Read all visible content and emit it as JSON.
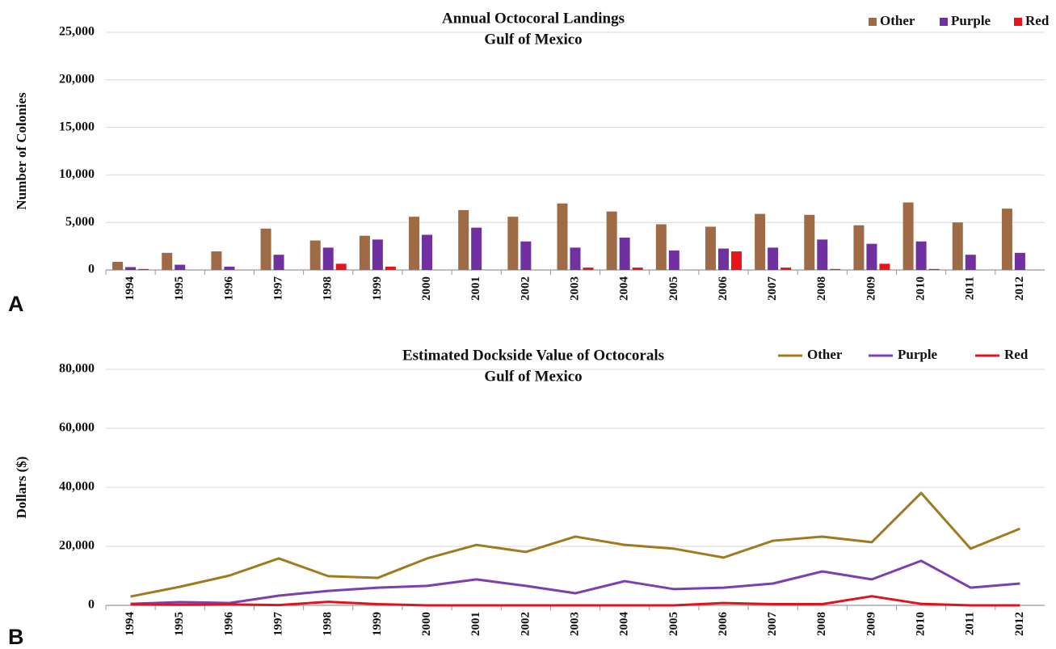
{
  "chart_data": [
    {
      "type": "bar",
      "panel_label": "A",
      "title": "Annual Octocoral Landings",
      "subtitle": "Gulf of Mexico",
      "y_label": "Number of Colonies",
      "categories": [
        "1994",
        "1995",
        "1996",
        "1997",
        "1998",
        "1999",
        "2000",
        "2001",
        "2002",
        "2003",
        "2004",
        "2005",
        "2006",
        "2007",
        "2008",
        "2009",
        "2010",
        "2011",
        "2012"
      ],
      "series": [
        {
          "name": "Other",
          "color": "#9e6b46",
          "values": [
            850,
            1800,
            1950,
            4350,
            3100,
            3600,
            5600,
            6300,
            5600,
            7000,
            6150,
            4800,
            4550,
            5900,
            5800,
            4700,
            7100,
            5000,
            6450
          ]
        },
        {
          "name": "Purple",
          "color": "#7030a0",
          "values": [
            300,
            550,
            350,
            1600,
            2350,
            3200,
            3700,
            4450,
            3000,
            2350,
            3400,
            2050,
            2250,
            2350,
            3200,
            2750,
            3000,
            1600,
            1800
          ]
        },
        {
          "name": "Red",
          "color": "#e8141c",
          "values": [
            100,
            0,
            0,
            0,
            650,
            350,
            0,
            0,
            0,
            250,
            250,
            0,
            1950,
            250,
            100,
            650,
            100,
            0,
            0
          ]
        }
      ],
      "ylim": [
        0,
        25000
      ],
      "yticks": [
        0,
        {
          "value": 5000,
          "label": "5,000"
        },
        {
          "value": 10000,
          "label": "10,000"
        },
        {
          "value": 15000,
          "label": "15,000"
        },
        {
          "value": 20000,
          "label": "20,000"
        },
        {
          "value": 25000,
          "label": "25,000"
        }
      ],
      "grid": true,
      "legend": "top-right"
    },
    {
      "type": "line",
      "panel_label": "B",
      "title": "Estimated Dockside Value of Octocorals",
      "subtitle": "Gulf of Mexico",
      "y_label": "Dollars ($)",
      "categories": [
        "1994",
        "1995",
        "1996",
        "1997",
        "1998",
        "1999",
        "2000",
        "2001",
        "2002",
        "2003",
        "2004",
        "2005",
        "2006",
        "2007",
        "2008",
        "2009",
        "2010",
        "2011",
        "2012"
      ],
      "series": [
        {
          "name": "Other",
          "color": "#a07a1e",
          "values": [
            3000,
            6300,
            10100,
            15900,
            9900,
            9300,
            15900,
            20500,
            18100,
            23300,
            20500,
            19200,
            16200,
            21900,
            23300,
            21400,
            38100,
            19200,
            26000
          ]
        },
        {
          "name": "Purple",
          "color": "#7b3fb0",
          "values": [
            500,
            1100,
            800,
            3300,
            4900,
            6000,
            6600,
            8800,
            6600,
            4100,
            8200,
            5500,
            6000,
            7400,
            11500,
            8800,
            15100,
            6000,
            7400
          ]
        },
        {
          "name": "Red",
          "color": "#e0141c",
          "values": [
            300,
            200,
            300,
            100,
            1200,
            400,
            0,
            0,
            0,
            0,
            0,
            0,
            800,
            400,
            400,
            3100,
            500,
            0,
            0
          ]
        }
      ],
      "ylim": [
        0,
        80000
      ],
      "yticks": [
        0,
        {
          "value": 20000,
          "label": "20,000"
        },
        {
          "value": 40000,
          "label": "40,000"
        },
        {
          "value": 60000,
          "label": "60,000"
        },
        {
          "value": 80000,
          "label": "80,000"
        }
      ],
      "grid": true,
      "legend": "top-right"
    }
  ]
}
